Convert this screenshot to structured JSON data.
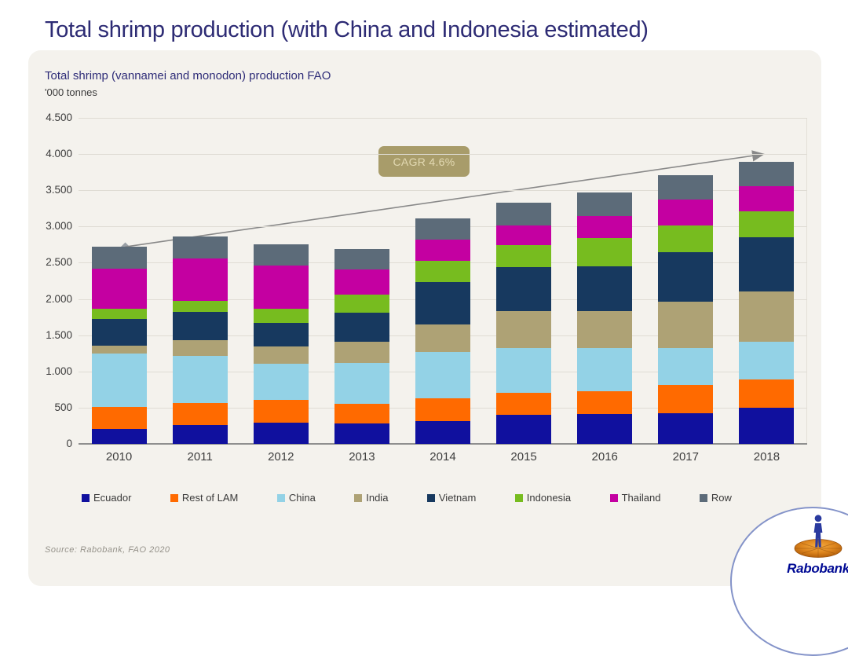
{
  "page_title": "Total shrimp production (with China and Indonesia estimated)",
  "card": {
    "subtitle": "Total shrimp (vannamei and monodon) production FAO",
    "unit_label": "'000 tonnes",
    "source": "Source: Rabobank, FAO 2020"
  },
  "annotation": {
    "cagr_label": "CAGR 4.6%"
  },
  "logo": {
    "brand": "Rabobank"
  },
  "colors": {
    "title": "#2d2b74",
    "card_bg": "#f4f2ed",
    "gridline": "#dfdcd4",
    "axis": "#8f8f8f",
    "trend_line": "#898989",
    "cagr_bg": "#a89c6a",
    "cagr_text": "#e2d9b2"
  },
  "chart_data": {
    "type": "bar",
    "stacked": true,
    "title": "Total shrimp (vannamei and monodon) production FAO",
    "xlabel": "",
    "ylabel": "'000 tonnes",
    "categories": [
      "2010",
      "2011",
      "2012",
      "2013",
      "2014",
      "2015",
      "2016",
      "2017",
      "2018"
    ],
    "ylim": [
      0,
      4500
    ],
    "ytick_values": [
      0,
      500,
      1000,
      1500,
      2000,
      2500,
      3000,
      3500,
      4000,
      4500
    ],
    "ytick_labels": [
      "0",
      "500",
      "1.000",
      "1.500",
      "2.000",
      "2.500",
      "3.000",
      "3.500",
      "4.000",
      "4.500"
    ],
    "grid": "horizontal",
    "legend_position": "bottom",
    "series": [
      {
        "name": "Ecuador",
        "color": "#10109e",
        "values": [
          210,
          260,
          295,
          285,
          310,
          400,
          410,
          425,
          500
        ]
      },
      {
        "name": "Rest of LAM",
        "color": "#ff6a00",
        "values": [
          295,
          305,
          310,
          265,
          315,
          310,
          315,
          385,
          385
        ]
      },
      {
        "name": "China",
        "color": "#93d2e6",
        "values": [
          740,
          645,
          500,
          570,
          645,
          615,
          600,
          510,
          530
        ]
      },
      {
        "name": "India",
        "color": "#aea275",
        "values": [
          110,
          220,
          245,
          285,
          375,
          510,
          510,
          640,
          690
        ]
      },
      {
        "name": "Vietnam",
        "color": "#17395f",
        "values": [
          370,
          395,
          325,
          410,
          590,
          600,
          620,
          690,
          750
        ]
      },
      {
        "name": "Indonesia",
        "color": "#77bc1f",
        "values": [
          145,
          150,
          195,
          245,
          295,
          305,
          385,
          370,
          360
        ]
      },
      {
        "name": "Thailand",
        "color": "#c400a1",
        "values": [
          545,
          585,
          590,
          350,
          285,
          270,
          305,
          355,
          340
        ]
      },
      {
        "name": "Row",
        "color": "#5c6b79",
        "values": [
          305,
          305,
          295,
          280,
          300,
          320,
          325,
          330,
          335
        ]
      }
    ],
    "totals": [
      2720,
      2865,
      2755,
      2690,
      3115,
      3330,
      3470,
      3705,
      3890
    ],
    "annotations": [
      {
        "type": "trend_arrow",
        "label": "CAGR 4.6%",
        "from_category": "2010",
        "to_category": "2018"
      }
    ]
  }
}
